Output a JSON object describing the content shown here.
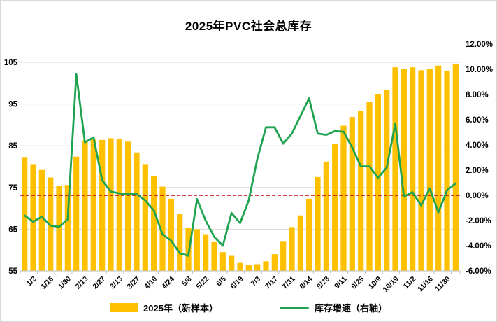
{
  "title": "2025年PVC社会总库存",
  "chart_data": {
    "type": "bar+line",
    "title": "2025年PVC社会总库存",
    "xlabel": "",
    "ylabel_left": "",
    "ylabel_right": "",
    "grid": true,
    "legend_position": "bottom",
    "categories": [
      "",
      "1/2",
      "",
      "1/16",
      "",
      "1/30",
      "",
      "2/13",
      "",
      "2/27",
      "",
      "3/13",
      "",
      "3/27",
      "",
      "4/10",
      "",
      "4/24",
      "",
      "5/8",
      "",
      "5/22",
      "",
      "6/5",
      "",
      "6/19",
      "",
      "7/3",
      "",
      "7/17",
      "",
      "7/31",
      "",
      "8/14",
      "",
      "8/28",
      "",
      "9/11",
      "",
      "9/25",
      "",
      "10/9",
      "",
      "10/19",
      "",
      "11/2",
      "",
      "11/16",
      "",
      "11/30",
      ""
    ],
    "x_tick_labels": [
      "1/2",
      "1/16",
      "1/30",
      "2/13",
      "2/27",
      "3/13",
      "3/27",
      "4/10",
      "4/24",
      "5/8",
      "5/22",
      "6/5",
      "6/19",
      "7/3",
      "7/17",
      "7/31",
      "8/14",
      "8/28",
      "9/11",
      "9/25",
      "10/9",
      "10/19",
      "11/2",
      "11/16",
      "11/30"
    ],
    "series": [
      {
        "name": "2025年（新样本）",
        "type": "bar",
        "axis": "left",
        "color": "#FFC000",
        "values": [
          82.3,
          80.6,
          79.2,
          77.4,
          75.3,
          75.6,
          82.4,
          86.3,
          86.5,
          86.4,
          86.8,
          86.6,
          86.0,
          83.4,
          80.6,
          77.8,
          75.2,
          72.3,
          68.6,
          65.3,
          65.0,
          63.8,
          61.9,
          59.5,
          58.6,
          56.9,
          56.5,
          56.6,
          57.3,
          59.0,
          62.0,
          65.5,
          68.3,
          72.3,
          77.5,
          81.2,
          85.5,
          89.8,
          91.9,
          93.3,
          95.5,
          97.4,
          98.3,
          103.8,
          103.5,
          103.8,
          103.1,
          103.4,
          104.2,
          103.0,
          104.5
        ]
      },
      {
        "name": "库存增速（右轴）",
        "type": "line",
        "axis": "right",
        "color": "#1FA351",
        "values": [
          -1.6,
          -2.1,
          -1.7,
          -2.4,
          -2.5,
          -1.9,
          9.6,
          4.2,
          4.6,
          1.2,
          0.3,
          0.15,
          0.1,
          0.1,
          -0.4,
          -1.2,
          -3.1,
          -3.6,
          -4.6,
          -4.8,
          -0.3,
          -2.0,
          -3.3,
          -4.0,
          -1.4,
          -2.2,
          -0.4,
          2.9,
          5.4,
          5.4,
          4.1,
          4.9,
          6.3,
          7.7,
          4.9,
          4.8,
          5.1,
          5.05,
          3.8,
          2.3,
          2.3,
          1.4,
          2.2,
          5.7,
          -0.1,
          0.25,
          -0.8,
          0.55,
          -1.35,
          0.4,
          0.95
        ]
      }
    ],
    "left_axis": {
      "min": 55,
      "max": 105,
      "ticks": [
        55,
        65,
        75,
        85,
        95,
        105
      ]
    },
    "right_axis": {
      "min": -6,
      "max": 12,
      "tick_labels": [
        "12.00%",
        "10.00%",
        "8.00%",
        "6.00%",
        "4.00%",
        "2.00%",
        "0.00%",
        "-2.00%",
        "-4.00%",
        "-6.00%"
      ]
    },
    "zero_line": {
      "at_right_value": 0,
      "color": "#C00000",
      "style": "dashed"
    },
    "colors": {
      "bar": "#FFC000",
      "line": "#1FA351",
      "zero_line": "#C00000",
      "gridline": "#D9D9D9",
      "axis": "#BFBFBF",
      "text": "#000000"
    }
  },
  "legend": [
    {
      "label": "2025年（新样本）",
      "color": "#FFC000",
      "marker": "rect"
    },
    {
      "label": "库存增速（右轴）",
      "color": "#1FA351",
      "marker": "line"
    }
  ]
}
